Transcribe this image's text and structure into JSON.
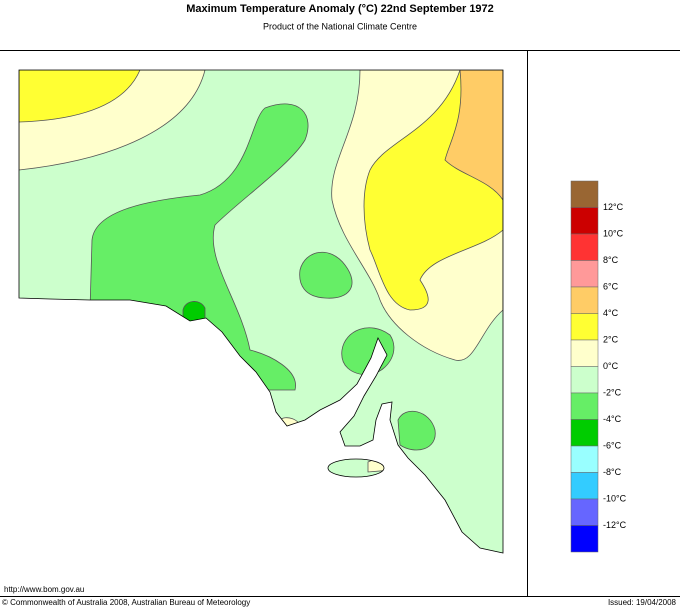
{
  "header": {
    "title": "Maximum Temperature Anomaly (°C)  22nd September 1972",
    "subtitle": "Product of the National Climate Centre"
  },
  "legend": {
    "colors": [
      "#996633",
      "#cc0000",
      "#ff3333",
      "#ff9999",
      "#ffcc66",
      "#ffff33",
      "#ffffcc",
      "#ccffcc",
      "#66ee66",
      "#00cc00",
      "#99ffff",
      "#33ccff",
      "#6666ff",
      "#0000ff"
    ],
    "labels": [
      "12°C",
      "10°C",
      "8°C",
      "6°C",
      "4°C",
      "2°C",
      "0°C",
      "-2°C",
      "-4°C",
      "-6°C",
      "-8°C",
      "-10°C",
      "-12°C"
    ]
  },
  "footer": {
    "url": "http://www.bom.gov.au",
    "copyright": "© Commonwealth of Australia 2008, Australian Bureau of Meteorology",
    "issued": "Issued: 19/04/2008"
  }
}
